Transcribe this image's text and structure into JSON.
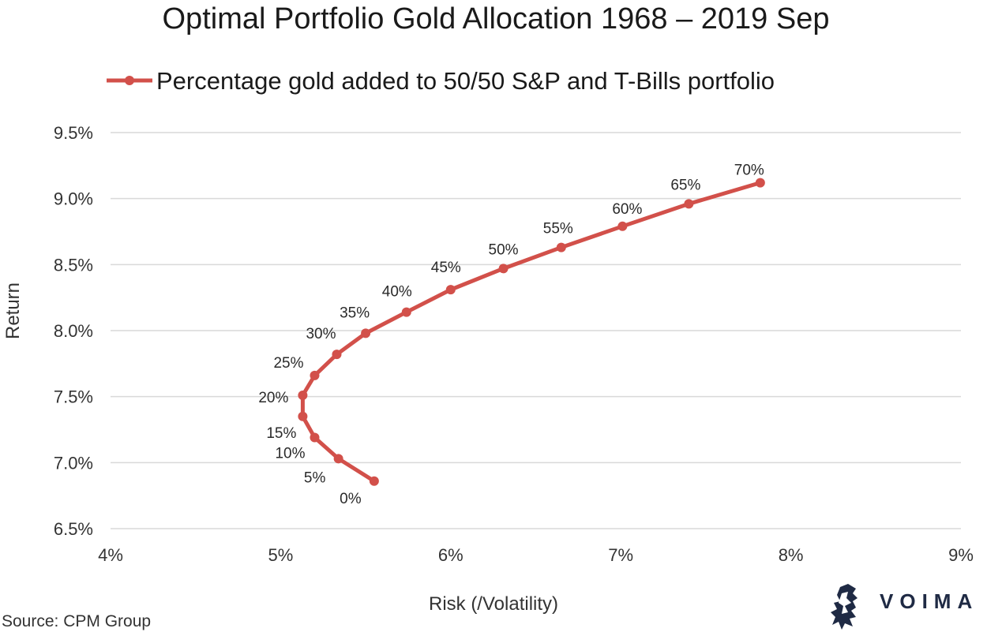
{
  "colors": {
    "series": "#d2504a",
    "grid": "#d9d9d9",
    "brand": "#1f2a44"
  },
  "chart_data": {
    "type": "line",
    "title": "Optimal Portfolio Gold Allocation 1968 – 2019 Sep",
    "legend": "Percentage gold added to 50/50 S&P and T-Bills portfolio",
    "legend_position": "top",
    "xlabel": "Risk (/Volatility)",
    "ylabel": "Return",
    "xlim": [
      4,
      9
    ],
    "ylim": [
      6.5,
      9.5
    ],
    "x_ticks": [
      4,
      5,
      6,
      7,
      8,
      9
    ],
    "x_tick_labels": [
      "4%",
      "5%",
      "6%",
      "7%",
      "8%",
      "9%"
    ],
    "y_ticks": [
      6.5,
      7.0,
      7.5,
      8.0,
      8.5,
      9.0,
      9.5
    ],
    "y_tick_labels": [
      "6.5%",
      "7.0%",
      "7.5%",
      "8.0%",
      "8.5%",
      "9.0%",
      "9.5%"
    ],
    "grid": true,
    "series": [
      {
        "name": "Percentage gold added to 50/50 S&P and T-Bills portfolio",
        "points": [
          {
            "label": "0%",
            "x": 5.55,
            "y": 6.86
          },
          {
            "label": "5%",
            "x": 5.34,
            "y": 7.03
          },
          {
            "label": "10%",
            "x": 5.2,
            "y": 7.19
          },
          {
            "label": "15%",
            "x": 5.13,
            "y": 7.35
          },
          {
            "label": "20%",
            "x": 5.13,
            "y": 7.51
          },
          {
            "label": "25%",
            "x": 5.2,
            "y": 7.66
          },
          {
            "label": "30%",
            "x": 5.33,
            "y": 7.82
          },
          {
            "label": "35%",
            "x": 5.5,
            "y": 7.98
          },
          {
            "label": "40%",
            "x": 5.74,
            "y": 8.14
          },
          {
            "label": "45%",
            "x": 6.0,
            "y": 8.31
          },
          {
            "label": "50%",
            "x": 6.31,
            "y": 8.47
          },
          {
            "label": "55%",
            "x": 6.65,
            "y": 8.63
          },
          {
            "label": "60%",
            "x": 7.01,
            "y": 8.79
          },
          {
            "label": "65%",
            "x": 7.4,
            "y": 8.96
          },
          {
            "label": "70%",
            "x": 7.82,
            "y": 9.12
          }
        ]
      }
    ]
  },
  "footer": {
    "source": "Source: CPM Group",
    "brand": "VOIMA",
    "brand_icon": "lion-rampant-icon"
  }
}
